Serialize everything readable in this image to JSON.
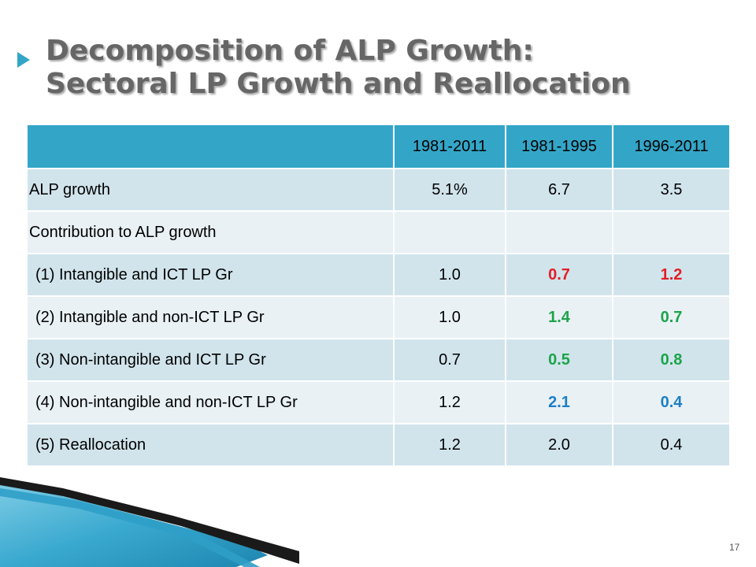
{
  "title": {
    "line1": "Decomposition of ALP Growth:",
    "line2": "Sectoral LP Growth and Reallocation"
  },
  "table": {
    "headers": [
      "",
      "1981-2011",
      "1981-1995",
      "1996-2011"
    ],
    "rows": [
      {
        "label": "ALP growth",
        "values": [
          "5.1%",
          "6.7",
          "3.5"
        ],
        "colors": [
          "black",
          "black",
          "black"
        ]
      },
      {
        "label": "Contribution to ALP growth",
        "values": [
          "",
          "",
          ""
        ],
        "colors": [
          "black",
          "black",
          "black"
        ]
      },
      {
        "label": "(1) Intangible and ICT LP Gr",
        "values": [
          "1.0",
          "0.7",
          "1.2"
        ],
        "colors": [
          "black",
          "red",
          "red"
        ]
      },
      {
        "label": "(2) Intangible and non-ICT LP Gr",
        "values": [
          "1.0",
          "1.4",
          "0.7"
        ],
        "colors": [
          "black",
          "green",
          "green"
        ]
      },
      {
        "label": "(3) Non-intangible and ICT LP Gr",
        "values": [
          "0.7",
          "0.5",
          "0.8"
        ],
        "colors": [
          "black",
          "green",
          "green"
        ]
      },
      {
        "label": "(4) Non-intangible and non-ICT LP Gr",
        "values": [
          "1.2",
          "2.1",
          "0.4"
        ],
        "colors": [
          "black",
          "blue",
          "blue"
        ]
      },
      {
        "label": "(5) Reallocation",
        "values": [
          "1.2",
          "2.0",
          "0.4"
        ],
        "colors": [
          "black",
          "black",
          "black"
        ]
      }
    ]
  },
  "colors": {
    "header_bg": "#33a6c8",
    "row_dark": "#d1e4ec",
    "row_light": "#e9f1f5",
    "red": "#e21f26",
    "green": "#1ca448",
    "blue": "#1d7fc4",
    "title": "#666666"
  },
  "page_number": "17"
}
